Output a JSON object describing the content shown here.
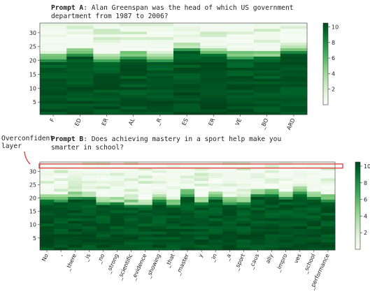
{
  "prompt_a": {
    "label": "Prompt A",
    "text_line1": ": Alan Greenspan was the head of which US government",
    "text_line2": "department from 1987 to 2006?"
  },
  "prompt_b": {
    "label": "Prompt B",
    "text_line1": ": Does achieving mastery in a sport help make you",
    "text_line2": "smarter in school?"
  },
  "annotation": {
    "line1": "Overconfident",
    "line2": "layer",
    "color": "#e0383a"
  },
  "chart_data": [
    {
      "type": "heatmap",
      "colormap": "Greens",
      "tokens": [
        "F",
        "ED",
        "ER",
        "AL",
        "_R",
        "ES",
        "ER",
        "VE",
        "_BO",
        "ARD"
      ],
      "yticks": [
        5,
        10,
        15,
        20,
        25,
        30
      ],
      "ylim": [
        1,
        33
      ],
      "colorbar": {
        "ticks": [
          2,
          4,
          6,
          8,
          10
        ],
        "range": [
          0,
          10.5
        ]
      },
      "frontier_layer": [
        20,
        22,
        20,
        21,
        20,
        24,
        22,
        21,
        21,
        23
      ]
    },
    {
      "type": "heatmap",
      "colormap": "Greens",
      "tokens": [
        "No",
        ",",
        "_there",
        "_is",
        "_no",
        "_strong",
        "_scientific",
        "_evidence",
        "_showing",
        "_that",
        "_master",
        "y",
        "_in",
        "_a",
        "_sport",
        "_caus",
        "ally",
        "_impro",
        "ves",
        "_school",
        "_performance"
      ],
      "yticks": [
        5,
        10,
        15,
        20,
        25,
        30
      ],
      "ylim": [
        1,
        33
      ],
      "colorbar": {
        "ticks": [
          2,
          4,
          6,
          8,
          10
        ],
        "range": [
          0,
          10.5
        ]
      },
      "frontier_layer": [
        19,
        19,
        20,
        20,
        18,
        18,
        17,
        17,
        19,
        17,
        21,
        18,
        20,
        18,
        18,
        21,
        21,
        20,
        22,
        20,
        19
      ],
      "highlighted_layer": 32
    }
  ]
}
